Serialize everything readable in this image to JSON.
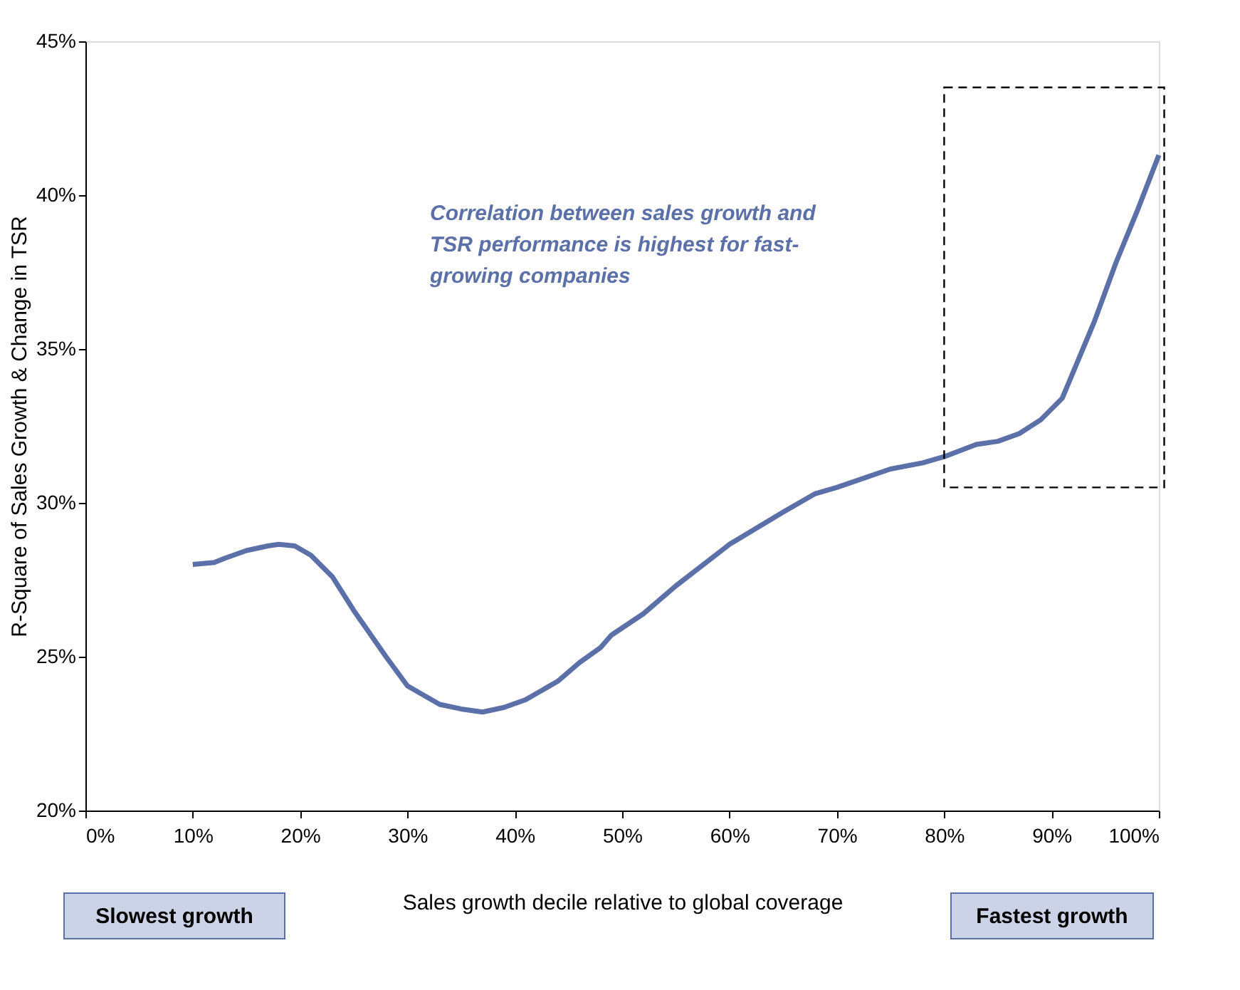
{
  "chart_data": {
    "type": "line",
    "xlabel": "Sales growth decile relative to global coverage",
    "ylabel": "R-Square of Sales Growth & Change in TSR",
    "x": [
      10,
      12,
      13,
      15,
      17,
      18,
      19.5,
      21,
      23,
      25,
      28,
      30,
      33,
      35,
      37,
      39,
      41,
      44,
      46,
      48,
      49,
      52,
      55,
      60,
      65,
      68,
      70,
      75,
      78,
      80,
      83,
      85,
      87,
      89,
      91,
      94,
      96,
      98,
      100
    ],
    "series": [
      {
        "color": "#5b6fa8",
        "values": [
          28.0,
          28.06,
          28.2,
          28.45,
          28.6,
          28.65,
          28.6,
          28.3,
          27.6,
          26.5,
          25.0,
          24.05,
          23.45,
          23.3,
          23.2,
          23.35,
          23.6,
          24.2,
          24.8,
          25.3,
          25.7,
          26.4,
          27.3,
          28.65,
          29.7,
          30.3,
          30.5,
          31.1,
          31.3,
          31.5,
          31.9,
          32.0,
          32.25,
          32.7,
          33.4,
          35.9,
          37.8,
          39.5,
          41.3
        ]
      }
    ],
    "xlim": [
      0,
      100
    ],
    "xticks": [
      {
        "value": 0,
        "label": "0%"
      },
      {
        "value": 10,
        "label": "10%"
      },
      {
        "value": 20,
        "label": "20%"
      },
      {
        "value": 30,
        "label": "30%"
      },
      {
        "value": 40,
        "label": "40%"
      },
      {
        "value": 50,
        "label": "50%"
      },
      {
        "value": 60,
        "label": "60%"
      },
      {
        "value": 70,
        "label": "70%"
      },
      {
        "value": 80,
        "label": "80%"
      },
      {
        "value": 90,
        "label": "90%"
      },
      {
        "value": 100,
        "label": "100%"
      }
    ],
    "ylim": [
      20,
      45
    ],
    "yticks": [
      {
        "value": 20,
        "label": "20%"
      },
      {
        "value": 25,
        "label": "25%"
      },
      {
        "value": 30,
        "label": "30%"
      },
      {
        "value": 35,
        "label": "35%"
      },
      {
        "value": 40,
        "label": "40%"
      },
      {
        "value": 45,
        "label": "45%"
      }
    ],
    "annotations": [
      "Correlation between sales growth and TSR performance is highest for fast-growing companies",
      "Slowest growth",
      "Fastest growth"
    ],
    "grid": false,
    "marker": "none",
    "line_style": "solid"
  }
}
